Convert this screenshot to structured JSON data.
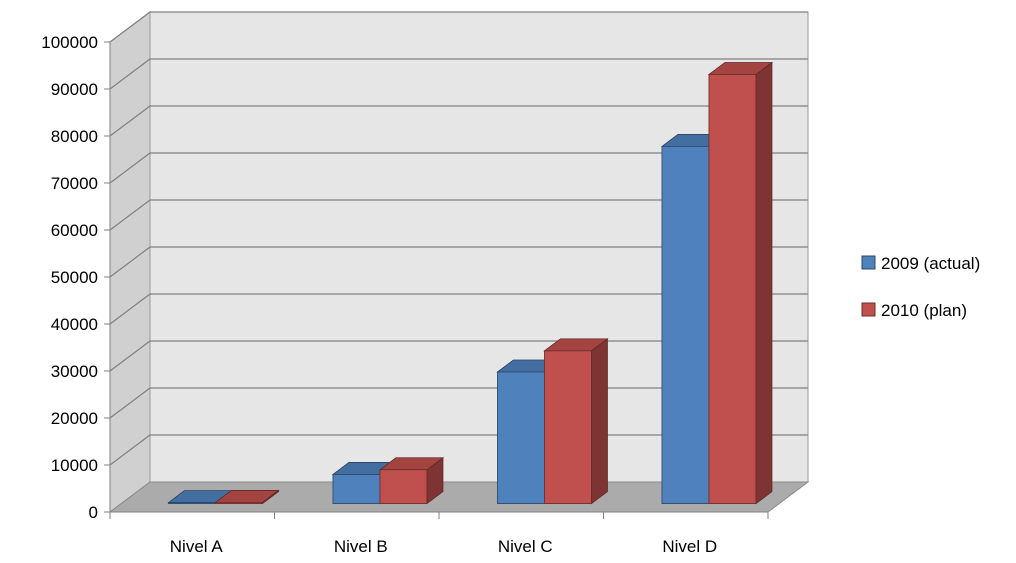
{
  "chart_data": {
    "type": "bar",
    "style": "3d-clustered-column",
    "categories": [
      "Nivel A",
      "Nivel B",
      "Nivel C",
      "Nivel D"
    ],
    "series": [
      {
        "name": "2009 (actual)",
        "values": [
          200,
          6200,
          28000,
          76000
        ],
        "color": "#4F81BD"
      },
      {
        "name": "2010 (plan)",
        "values": [
          250,
          7200,
          32500,
          91300
        ],
        "color": "#C0504D"
      }
    ],
    "ylim": [
      0,
      100000
    ],
    "yticks": [
      "0",
      "10000",
      "20000",
      "30000",
      "40000",
      "50000",
      "60000",
      "70000",
      "80000",
      "90000",
      "100000"
    ],
    "grid": true,
    "legend_position": "right",
    "colors": {
      "back_wall": "#E6E6E6",
      "side_wall": "#D0D0D0",
      "floor": "#ABABAB",
      "gridline": "#808080"
    }
  }
}
